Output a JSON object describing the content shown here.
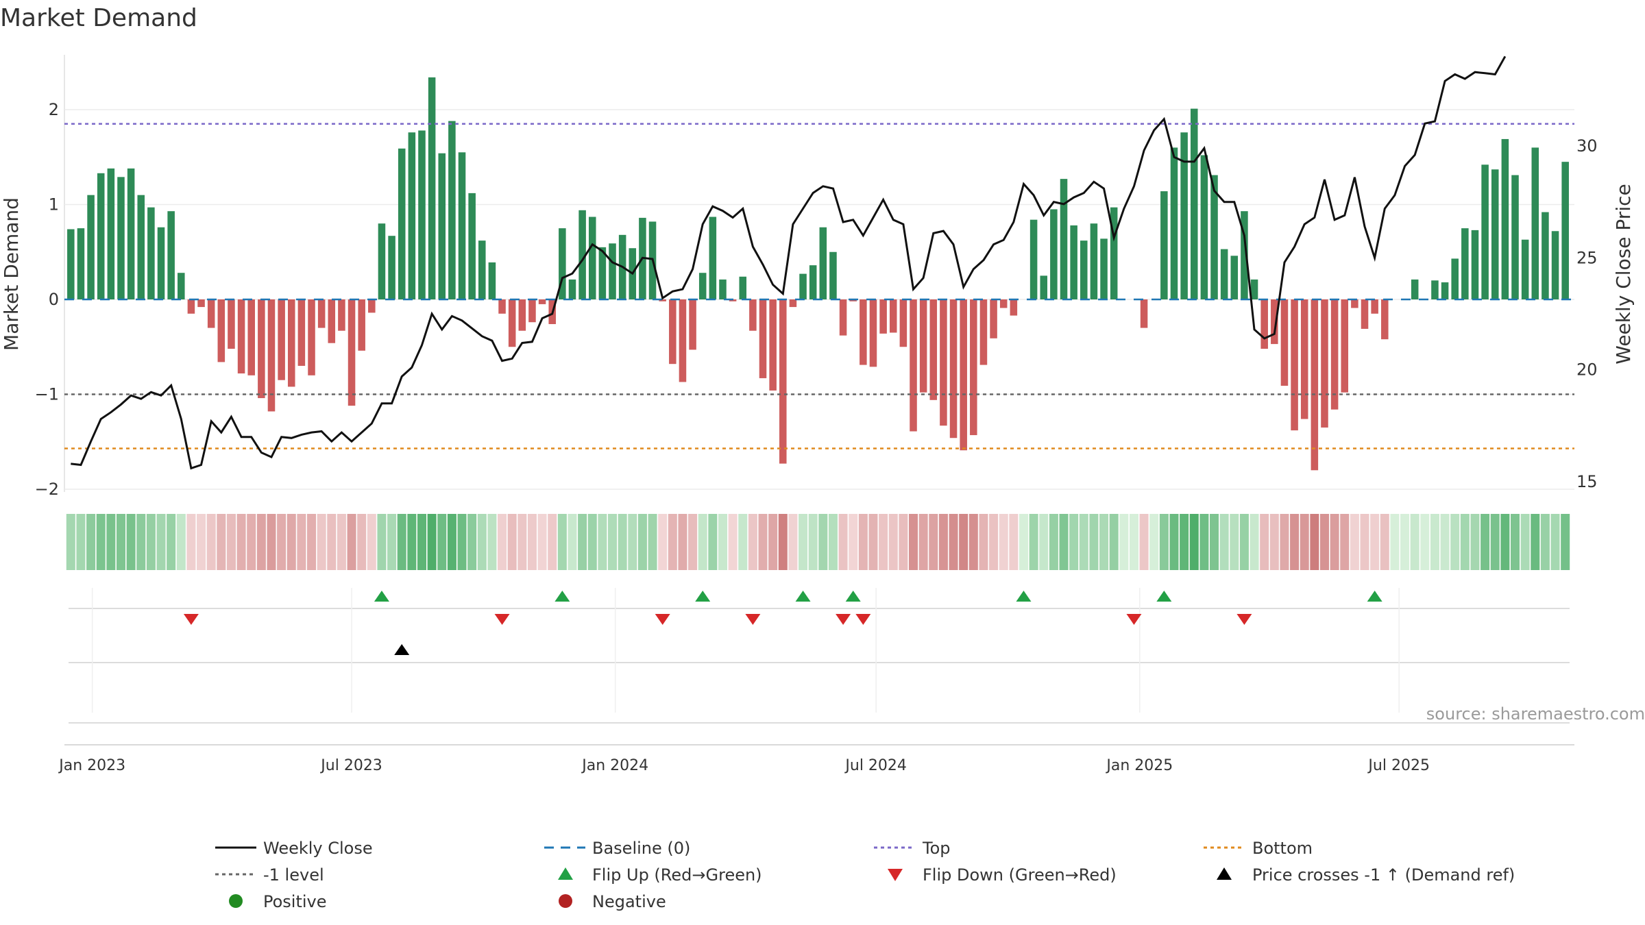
{
  "chart_data": {
    "type": "bar",
    "title": "Market Demand",
    "ylabel_left": "Market Demand",
    "ylabel_right": "Weekly Close Price",
    "ylim_left": [
      -2,
      2.5
    ],
    "ylim_right": [
      14,
      33
    ],
    "yticks_left": [
      "2",
      "1",
      "0",
      "−1",
      "−2"
    ],
    "yticks_right": [
      "30",
      "25",
      "20",
      "15"
    ],
    "x_tick_labels": [
      "Jan 2023",
      "Jul 2023",
      "Jan 2024",
      "Jul 2024",
      "Jan 2025",
      "Jul 2025"
    ],
    "x_tick_dates": [
      "2023-01-01",
      "2023-07-01",
      "2024-01-01",
      "2024-07-01",
      "2025-01-01",
      "2025-07-01"
    ],
    "x_start_date": "2022-12-17",
    "weekly_dates_note": "one bar per week",
    "levels": {
      "top": 1.85,
      "minus_one": -1.0,
      "bottom": -1.57,
      "baseline": 0
    },
    "demand": [
      0.74,
      0.75,
      1.1,
      1.33,
      1.38,
      1.29,
      1.38,
      1.1,
      0.97,
      0.76,
      0.93,
      0.28,
      -0.15,
      -0.08,
      -0.3,
      -0.66,
      -0.52,
      -0.78,
      -0.8,
      -1.04,
      -1.18,
      -0.85,
      -0.92,
      -0.7,
      -0.8,
      -0.3,
      -0.46,
      -0.33,
      -1.12,
      -0.54,
      -0.14,
      0.8,
      0.67,
      1.59,
      1.76,
      1.78,
      2.34,
      1.54,
      1.88,
      1.55,
      1.12,
      0.62,
      0.39,
      -0.15,
      -0.5,
      -0.33,
      -0.24,
      -0.05,
      -0.26,
      0.75,
      0.21,
      0.94,
      0.87,
      0.55,
      0.59,
      0.68,
      0.54,
      0.86,
      0.82,
      -0.02,
      -0.68,
      -0.87,
      -0.53,
      0.28,
      0.87,
      0.21,
      -0.02,
      0.24,
      -0.33,
      -0.83,
      -0.96,
      -1.73,
      -0.08,
      0.27,
      0.36,
      0.76,
      0.5,
      -0.38,
      -0.02,
      -0.69,
      -0.71,
      -0.36,
      -0.35,
      -0.5,
      -1.39,
      -0.98,
      -1.06,
      -1.33,
      -1.46,
      -1.59,
      -1.43,
      -0.69,
      -0.41,
      -0.09,
      -0.17,
      0.0,
      0.84,
      0.25,
      0.95,
      1.27,
      0.78,
      0.62,
      0.8,
      0.64,
      0.97,
      0.0,
      0.0,
      -0.3,
      0.0,
      1.14,
      1.6,
      1.76,
      2.01,
      1.52,
      1.31,
      0.53,
      0.46,
      0.93,
      0.21,
      -0.52,
      -0.47,
      -0.91,
      -1.38,
      -1.26,
      -1.8,
      -1.35,
      -1.16,
      -0.98,
      -0.09,
      -0.31,
      -0.15,
      -0.42,
      0.0,
      0.0,
      0.21,
      0.0,
      0.2,
      0.18,
      0.43,
      0.75,
      0.73,
      1.42,
      1.37,
      1.69,
      1.31,
      0.63,
      1.6,
      0.92,
      0.72,
      1.45
    ],
    "close": [
      15.8,
      15.75,
      16.8,
      17.8,
      18.1,
      18.45,
      18.85,
      18.7,
      19.0,
      18.85,
      19.3,
      17.8,
      15.6,
      15.75,
      17.7,
      17.2,
      17.9,
      17.0,
      17.0,
      16.3,
      16.1,
      17.0,
      16.95,
      17.1,
      17.2,
      17.25,
      16.8,
      17.2,
      16.8,
      17.2,
      17.6,
      18.5,
      18.5,
      19.7,
      20.1,
      21.1,
      22.5,
      21.8,
      22.4,
      22.2,
      21.85,
      21.5,
      21.3,
      20.4,
      20.5,
      21.2,
      21.25,
      22.3,
      22.5,
      24.1,
      24.3,
      24.9,
      25.6,
      25.3,
      24.8,
      24.6,
      24.3,
      25.0,
      24.95,
      23.2,
      23.5,
      23.6,
      24.5,
      26.5,
      27.3,
      27.1,
      26.8,
      27.2,
      25.5,
      24.7,
      23.8,
      23.4,
      26.5,
      27.2,
      27.9,
      28.2,
      28.1,
      26.6,
      26.7,
      26.0,
      26.8,
      27.6,
      26.7,
      26.5,
      23.6,
      24.1,
      26.1,
      26.2,
      25.6,
      23.7,
      24.5,
      24.9,
      25.6,
      25.8,
      26.6,
      28.3,
      27.8,
      26.9,
      27.5,
      27.4,
      27.7,
      27.9,
      28.4,
      28.1,
      25.9,
      27.2,
      28.2,
      29.8,
      30.7,
      31.2,
      29.5,
      29.3,
      29.3,
      29.9,
      28.0,
      27.5,
      27.5,
      26.0,
      21.8,
      21.4,
      21.6,
      24.8,
      25.5,
      26.5,
      26.8,
      28.5,
      26.7,
      26.9,
      28.6,
      26.4,
      25.0,
      27.2,
      27.8,
      29.1,
      29.6,
      31.0,
      31.1,
      32.9,
      33.2,
      33.0,
      33.3,
      33.25,
      33.2,
      34.0
    ],
    "flip_up_index": [
      31,
      49,
      63,
      73,
      78,
      95,
      109,
      130
    ],
    "flip_down_index": [
      12,
      43,
      59,
      68,
      77,
      79,
      106,
      117
    ],
    "price_cross_index": [
      33
    ],
    "series": [
      {
        "name": "Weekly Close",
        "color": "#111111"
      },
      {
        "name": "Baseline (0)",
        "color": "#1f77b4"
      },
      {
        "name": "Top",
        "color": "#7b68c8"
      },
      {
        "name": "Bottom",
        "color": "#e08a1e"
      },
      {
        "name": "-1 level",
        "color": "#666666"
      },
      {
        "name": "Flip Up (Red→Green)",
        "color": "#22a045"
      },
      {
        "name": "Flip Down (Green→Red)",
        "color": "#d62728"
      },
      {
        "name": "Price crosses -1 ↑ (Demand ref)",
        "color": "#000000"
      },
      {
        "name": "Positive",
        "color": "#228b22"
      },
      {
        "name": "Negative",
        "color": "#b22222"
      }
    ],
    "bar_colors": {
      "positive": "#2e8b57",
      "negative": "#cd5c5c"
    },
    "source_text": "source: sharemaestro.com"
  }
}
